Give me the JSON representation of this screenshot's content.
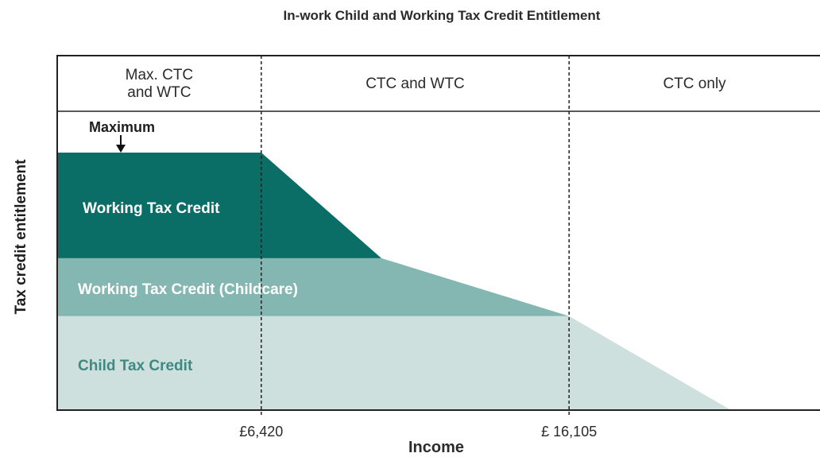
{
  "chart_data": {
    "type": "area",
    "title": "In-work Child and Working Tax Credit Entitlement",
    "xlabel": "Income",
    "ylabel": "Tax credit entitlement",
    "regions": [
      {
        "label": "Max. CTC\nand WTC",
        "x_start": 0,
        "x_end": 6420
      },
      {
        "label": "CTC and WTC",
        "x_start": 6420,
        "x_end": 16105
      },
      {
        "label": "CTC only",
        "x_start": 16105,
        "x_end": 24000
      }
    ],
    "x_ticks": [
      {
        "value": 6420,
        "label": "£6,420"
      },
      {
        "value": 16105,
        "label": "£ 16,105"
      }
    ],
    "thresholds": [
      6420,
      16105
    ],
    "xlim": [
      0,
      24000
    ],
    "ylim": [
      0,
      100
    ],
    "series": [
      {
        "name": "Child Tax Credit",
        "base": 0,
        "top": 36.5,
        "taper_start": 16105,
        "taper_end": 21200,
        "color": "#cde0de",
        "label_color": "#3d8a82"
      },
      {
        "name": "Working Tax Credit (Childcare)",
        "base": 36.5,
        "top": 59,
        "taper_start": 10200,
        "taper_end": 16105,
        "color": "#85b7b2",
        "label_color": "#ffffff"
      },
      {
        "name": "Working Tax Credit",
        "base": 59,
        "top": 100,
        "taper_start": 6420,
        "taper_end": 10200,
        "color": "#0b6e66",
        "label_color": "#ffffff"
      }
    ],
    "annotations": [
      {
        "text": "Maximum",
        "x": 2000,
        "y": 100,
        "arrow": "down"
      }
    ],
    "grid": false,
    "legend": "none"
  }
}
